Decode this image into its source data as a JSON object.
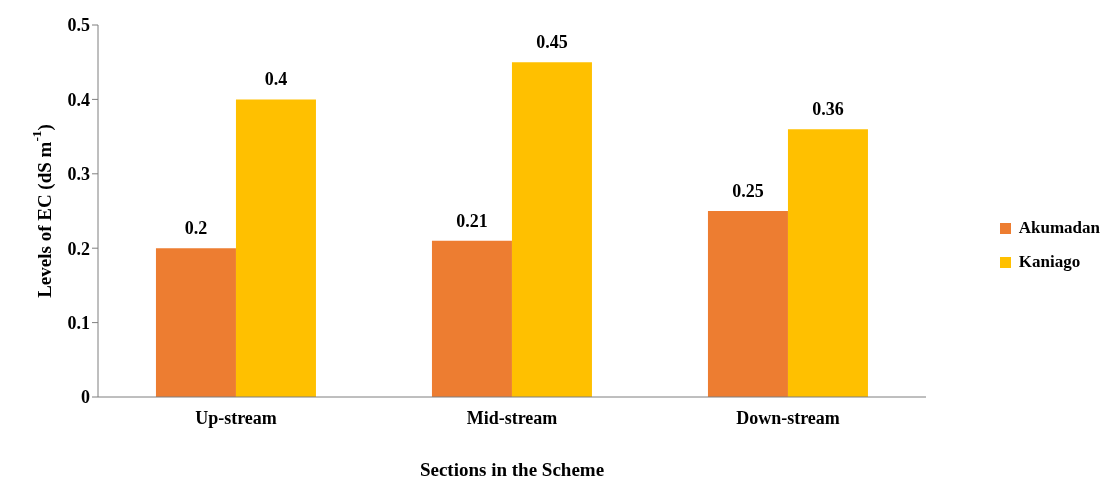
{
  "chart_data": {
    "type": "bar",
    "xlabel": "Sections in the Scheme",
    "ylabel": "Levels of EC (dS m$^{-1}$)",
    "categories": [
      "Up-stream",
      "Mid-stream",
      "Down-stream"
    ],
    "series": [
      {
        "name": "Akumadan",
        "color": "#ed7d31",
        "values": [
          0.2,
          0.21,
          0.25
        ]
      },
      {
        "name": "Kaniago",
        "color": "#ffc000",
        "values": [
          0.4,
          0.45,
          0.36
        ]
      }
    ],
    "ylim": [
      0,
      0.5
    ],
    "yticks": [
      {
        "value": 0,
        "label": "0"
      },
      0.1,
      0.2,
      0.3,
      0.4,
      0.5
    ],
    "data_labels": true,
    "legend": "right",
    "grid": false
  }
}
